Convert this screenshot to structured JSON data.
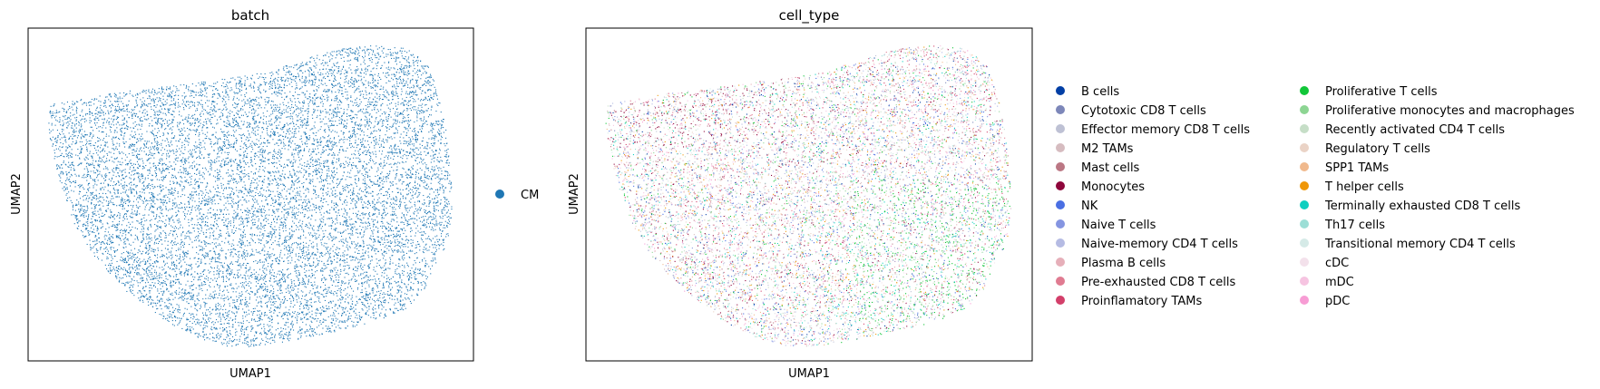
{
  "chart_data": [
    {
      "type": "scatter",
      "title": "batch",
      "xlabel": "UMAP1",
      "ylabel": "UMAP2",
      "ticks": "none",
      "grid": false,
      "legend_position": "right",
      "legend": [
        {
          "name": "CM",
          "color": "#1f77b4"
        }
      ]
    },
    {
      "type": "scatter",
      "title": "cell_type",
      "xlabel": "UMAP1",
      "ylabel": "UMAP2",
      "ticks": "none",
      "grid": false,
      "legend_position": "right",
      "legend": [
        {
          "name": "B cells",
          "color": "#023fa5"
        },
        {
          "name": "Cytotoxic CD8 T cells",
          "color": "#7d87b9"
        },
        {
          "name": "Effector memory CD8 T cells",
          "color": "#bec1d4"
        },
        {
          "name": "M2 TAMs",
          "color": "#d6bcc0"
        },
        {
          "name": "Mast cells",
          "color": "#bb7784"
        },
        {
          "name": "Monocytes",
          "color": "#8e063b"
        },
        {
          "name": "NK",
          "color": "#4a6fe3"
        },
        {
          "name": "Naive T cells",
          "color": "#8595e1"
        },
        {
          "name": "Naive-memory CD4 T cells",
          "color": "#b5bbe3"
        },
        {
          "name": "Plasma B cells",
          "color": "#e6afb9"
        },
        {
          "name": "Pre-exhausted CD8 T cells",
          "color": "#e07b91"
        },
        {
          "name": "Proinflamatory TAMs",
          "color": "#d33f6a"
        },
        {
          "name": "Proliferative T cells",
          "color": "#11c638"
        },
        {
          "name": "Proliferative monocytes and macrophages",
          "color": "#8dd593"
        },
        {
          "name": "Recently activated CD4 T cells",
          "color": "#c6dec7"
        },
        {
          "name": "Regulatory T cells",
          "color": "#ead3c6"
        },
        {
          "name": "SPP1 TAMs",
          "color": "#f0b98d"
        },
        {
          "name": "T helper cells",
          "color": "#ef9708"
        },
        {
          "name": "Terminally exhausted CD8 T cells",
          "color": "#0fcfc0"
        },
        {
          "name": "Th17 cells",
          "color": "#9cded6"
        },
        {
          "name": "Transitional memory CD4 T cells",
          "color": "#d5eae7"
        },
        {
          "name": "cDC",
          "color": "#f3e1eb"
        },
        {
          "name": "mDC",
          "color": "#f6c4e1"
        },
        {
          "name": "pDC",
          "color": "#f79cd4"
        }
      ]
    }
  ]
}
